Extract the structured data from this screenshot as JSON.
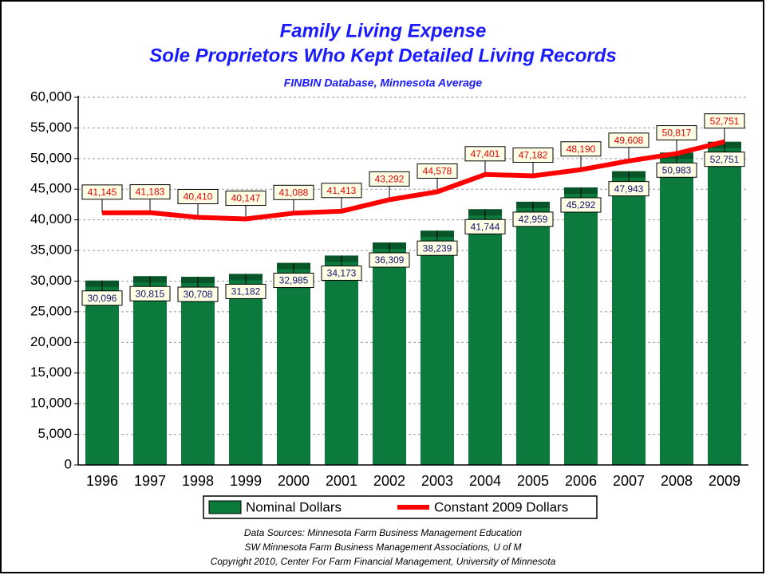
{
  "chart_data": {
    "type": "bar",
    "title": "Family Living Expense",
    "title2": "Sole Proprietors Who Kept Detailed Living Records",
    "subtitle": "FINBIN Database, Minnesota Average",
    "categories": [
      "1996",
      "1997",
      "1998",
      "1999",
      "2000",
      "2001",
      "2002",
      "2003",
      "2004",
      "2005",
      "2006",
      "2007",
      "2008",
      "2009"
    ],
    "series": [
      {
        "name": "Nominal Dollars",
        "type": "bar",
        "color": "#0b7a3c",
        "values": [
          30096,
          30815,
          30708,
          31182,
          32985,
          34173,
          36309,
          38239,
          41744,
          42959,
          45292,
          47943,
          50983,
          52751
        ],
        "value_labels": [
          "30,096",
          "30,815",
          "30,708",
          "31,182",
          "32,985",
          "34,173",
          "36,309",
          "38,239",
          "41,744",
          "42,959",
          "45,292",
          "47,943",
          "50,983",
          "52,751"
        ]
      },
      {
        "name": "Constant 2009 Dollars",
        "type": "line",
        "color": "#ff0000",
        "values": [
          41145,
          41183,
          40410,
          40147,
          41088,
          41413,
          43292,
          44578,
          47401,
          47182,
          48190,
          49608,
          50817,
          52751
        ],
        "value_labels": [
          "41,145",
          "41,183",
          "40,410",
          "40,147",
          "41,088",
          "41,413",
          "43,292",
          "44,578",
          "47,401",
          "47,182",
          "48,190",
          "49,608",
          "50,817",
          "52,751"
        ]
      }
    ],
    "ylim": [
      0,
      60000
    ],
    "yticks": [
      0,
      {
        "value": 5000,
        "label": "5,000"
      },
      {
        "value": 10000,
        "label": "10,000"
      },
      {
        "value": 15000,
        "label": "15,000"
      },
      {
        "value": 20000,
        "label": "20,000"
      },
      {
        "value": 25000,
        "label": "25,000"
      },
      {
        "value": 30000,
        "label": "30,000"
      },
      {
        "value": 35000,
        "label": "35,000"
      },
      {
        "value": 40000,
        "label": "40,000"
      },
      {
        "value": 45000,
        "label": "45,000"
      },
      {
        "value": 50000,
        "label": "50,000"
      },
      {
        "value": 55000,
        "label": "55,000"
      },
      {
        "value": 60000,
        "label": "60,000"
      }
    ],
    "grid": true,
    "footer": [
      "Data Sources:  Minnesota Farm Business Management Education",
      "SW Minnesota Farm Business Management Associations, U of M",
      "Copyright 2010, Center For Farm Financial Management, University of Minnesota"
    ]
  }
}
